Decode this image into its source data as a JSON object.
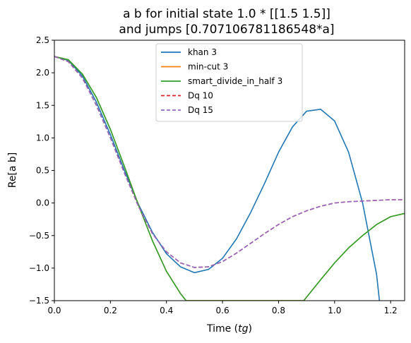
{
  "chart_data": {
    "type": "line",
    "title_line1": "a b for initial state 1.0 * [[1.5 1.5]]",
    "title_line2": "and jumps [0.707106781186548*a]",
    "xlabel_prefix": "Time (",
    "xlabel_italic": "tg",
    "xlabel_suffix": ")",
    "ylabel": "Re[a b]",
    "xlim": [
      0,
      1.25
    ],
    "ylim": [
      -1.5,
      2.5
    ],
    "xticks": [
      0.0,
      0.2,
      0.4,
      0.6,
      0.8,
      1.0,
      1.2
    ],
    "xtick_labels": [
      "0.0",
      "0.2",
      "0.4",
      "0.6",
      "0.8",
      "1.0",
      "1.2"
    ],
    "yticks": [
      -1.5,
      -1.0,
      -0.5,
      0.0,
      0.5,
      1.0,
      1.5,
      2.0,
      2.5
    ],
    "ytick_labels": [
      "−1.5",
      "−1.0",
      "−0.5",
      "0.0",
      "0.5",
      "1.0",
      "1.5",
      "2.0",
      "2.5"
    ],
    "grid": false,
    "legend_position": "top-center",
    "series": [
      {
        "name": "khan 3",
        "color": "#1f77b4",
        "dash": "solid",
        "x": [
          0.0,
          0.05,
          0.1,
          0.15,
          0.2,
          0.25,
          0.3,
          0.35,
          0.4,
          0.45,
          0.5,
          0.55,
          0.6,
          0.65,
          0.7,
          0.75,
          0.8,
          0.85,
          0.9,
          0.95,
          1.0,
          1.05,
          1.1,
          1.15,
          1.16
        ],
        "y": [
          2.25,
          2.19,
          1.95,
          1.55,
          1.05,
          0.5,
          -0.02,
          -0.45,
          -0.78,
          -0.98,
          -1.07,
          -1.02,
          -0.85,
          -0.55,
          -0.15,
          0.3,
          0.78,
          1.17,
          1.41,
          1.44,
          1.26,
          0.78,
          0.0,
          -1.1,
          -1.5
        ]
      },
      {
        "name": "min-cut 3",
        "color": "#ff7f0e",
        "dash": "solid",
        "x": [
          0.0,
          0.05,
          0.1,
          0.15,
          0.2,
          0.25,
          0.3,
          0.35,
          0.4,
          0.45,
          0.47,
          0.89,
          0.95,
          1.0,
          1.05,
          1.1,
          1.15,
          1.2,
          1.25
        ],
        "y": [
          2.25,
          2.2,
          1.98,
          1.62,
          1.13,
          0.56,
          -0.03,
          -0.58,
          -1.05,
          -1.39,
          -1.5,
          -1.5,
          -1.18,
          -0.92,
          -0.69,
          -0.5,
          -0.33,
          -0.21,
          -0.16
        ]
      },
      {
        "name": "smart_divide_in_half 3",
        "color": "#2ca02c",
        "dash": "solid",
        "x": [
          0.0,
          0.05,
          0.1,
          0.15,
          0.2,
          0.25,
          0.3,
          0.35,
          0.4,
          0.45,
          0.47,
          0.89,
          0.95,
          1.0,
          1.05,
          1.1,
          1.15,
          1.2,
          1.25
        ],
        "y": [
          2.25,
          2.2,
          1.98,
          1.62,
          1.13,
          0.56,
          -0.03,
          -0.58,
          -1.05,
          -1.39,
          -1.5,
          -1.5,
          -1.18,
          -0.92,
          -0.69,
          -0.5,
          -0.33,
          -0.21,
          -0.16
        ]
      },
      {
        "name": "Dq 10",
        "color": "#d62728",
        "dash": "dashed",
        "x": [
          0.0,
          0.05,
          0.1,
          0.15,
          0.2,
          0.25,
          0.3,
          0.35,
          0.4,
          0.45,
          0.5,
          0.55,
          0.6,
          0.65,
          0.7,
          0.75,
          0.8,
          0.85,
          0.9,
          0.95,
          1.0,
          1.05,
          1.1,
          1.15,
          1.2,
          1.25
        ],
        "y": [
          2.25,
          2.17,
          1.92,
          1.5,
          1.0,
          0.46,
          -0.05,
          -0.47,
          -0.75,
          -0.92,
          -0.99,
          -0.98,
          -0.9,
          -0.77,
          -0.62,
          -0.47,
          -0.33,
          -0.21,
          -0.12,
          -0.05,
          0.0,
          0.02,
          0.03,
          0.04,
          0.05,
          0.05
        ]
      },
      {
        "name": "Dq 15",
        "color": "#9467bd",
        "dash": "dashed",
        "x": [
          0.0,
          0.05,
          0.1,
          0.15,
          0.2,
          0.25,
          0.3,
          0.35,
          0.4,
          0.45,
          0.5,
          0.55,
          0.6,
          0.65,
          0.7,
          0.75,
          0.8,
          0.85,
          0.9,
          0.95,
          1.0,
          1.05,
          1.1,
          1.15,
          1.2,
          1.25
        ],
        "y": [
          2.25,
          2.17,
          1.92,
          1.5,
          1.0,
          0.46,
          -0.05,
          -0.47,
          -0.75,
          -0.92,
          -0.99,
          -0.98,
          -0.9,
          -0.77,
          -0.62,
          -0.47,
          -0.33,
          -0.21,
          -0.12,
          -0.05,
          0.0,
          0.02,
          0.03,
          0.04,
          0.05,
          0.05
        ]
      }
    ]
  }
}
